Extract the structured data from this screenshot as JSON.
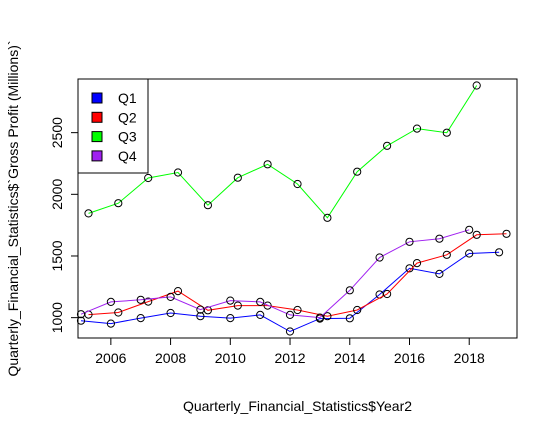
{
  "chart_data": {
    "type": "line",
    "title": "",
    "xlabel": "Quarterly_Financial_Statistics$Year2",
    "ylabel": "Quarterly_Financial_Statistics$`Gross Profit (Millions)`",
    "xlim": [
      2004.9,
      2019.6
    ],
    "ylim": [
      835,
      2935
    ],
    "x_ticks": [
      2006,
      2008,
      2010,
      2012,
      2014,
      2016,
      2018
    ],
    "y_ticks": [
      1000,
      1500,
      2000,
      2500
    ],
    "legend_position": "top-left",
    "markers": "open circles",
    "series": [
      {
        "name": "Q1",
        "color": "#0000FF",
        "x": [
          2005.0,
          2006.0,
          2007.0,
          2008.0,
          2009.0,
          2010.0,
          2011.0,
          2012.0,
          2013.0,
          2014.0,
          2015.0,
          2016.0,
          2017.0,
          2018.0,
          2019.0
        ],
        "y": [
          975,
          952,
          996,
          1038,
          1012,
          996,
          1022,
          888,
          992,
          995,
          1188,
          1400,
          1355,
          1520,
          1530
        ]
      },
      {
        "name": "Q2",
        "color": "#FF0000",
        "x": [
          2005.25,
          2006.25,
          2007.25,
          2008.25,
          2009.25,
          2010.25,
          2011.25,
          2012.25,
          2013.25,
          2014.25,
          2015.25,
          2016.25,
          2017.25,
          2018.25,
          2019.25
        ],
        "y": [
          1025,
          1042,
          1130,
          1215,
          1060,
          1098,
          1098,
          1062,
          1012,
          1062,
          1192,
          1442,
          1510,
          1672,
          1680
        ]
      },
      {
        "name": "Q3",
        "color": "#00FF00",
        "x": [
          2005.25,
          2006.25,
          2007.25,
          2008.25,
          2009.25,
          2010.25,
          2011.25,
          2012.25,
          2013.25,
          2014.25,
          2015.25,
          2016.25,
          2017.25,
          2018.25
        ],
        "y": [
          1845,
          1928,
          2132,
          2177,
          1912,
          2135,
          2243,
          2084,
          1810,
          2183,
          2393,
          2533,
          2500,
          2882
        ]
      },
      {
        "name": "Q4",
        "color": "#A020F0",
        "x": [
          2005.0,
          2006.0,
          2007.0,
          2008.0,
          2009.0,
          2010.0,
          2011.0,
          2012.0,
          2013.0,
          2014.0,
          2015.0,
          2016.0,
          2017.0,
          2018.0
        ],
        "y": [
          1028,
          1128,
          1145,
          1168,
          1065,
          1138,
          1128,
          1022,
          1000,
          1222,
          1488,
          1615,
          1640,
          1712
        ]
      }
    ]
  }
}
